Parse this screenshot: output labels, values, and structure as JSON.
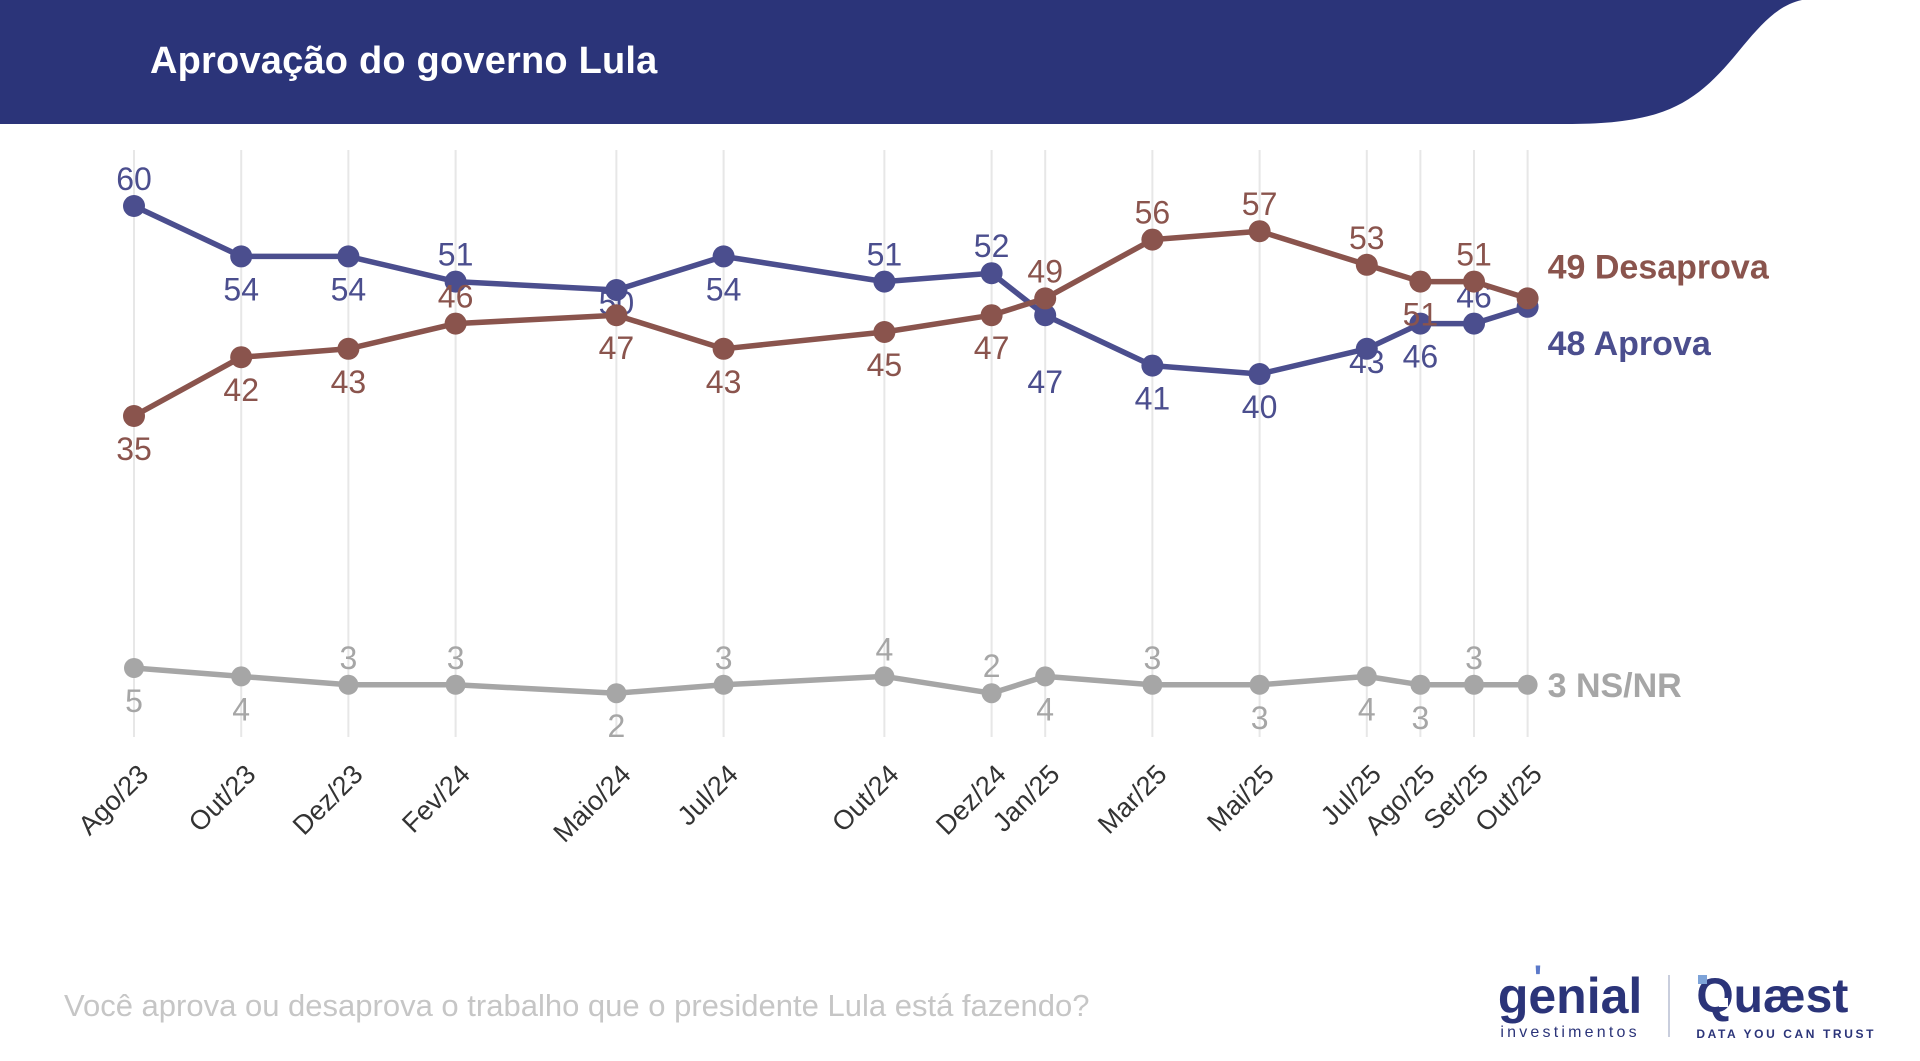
{
  "header": {
    "title": "Aprovação do governo Lula",
    "bg_color": "#2b3479",
    "text_color": "#ffffff"
  },
  "chart_data": {
    "type": "line",
    "title": "Aprovação do governo Lula",
    "categories": [
      "Ago/23",
      "Out/23",
      "Dez/23",
      "Fev/24",
      "Maio/24",
      "Jul/24",
      "Out/24",
      "Dez/24",
      "Jan/25",
      "Mar/25",
      "Mai/25",
      "Jul/25",
      "Ago/25",
      "Set/25",
      "Out/25"
    ],
    "month_offsets": [
      0,
      2,
      4,
      6,
      9,
      11,
      14,
      16,
      17,
      19,
      21,
      23,
      24,
      25,
      26
    ],
    "series": [
      {
        "id": "aprova",
        "name": "Aprova",
        "color": "#4b4e8e",
        "values": [
          60,
          54,
          54,
          51,
          50,
          54,
          51,
          52,
          47,
          41,
          40,
          43,
          46,
          46,
          48
        ],
        "label_pos": [
          "above",
          "below",
          "below",
          "above",
          "on",
          "below",
          "above",
          "above",
          "far-below",
          "below",
          "below",
          "on",
          "below",
          "above",
          "end"
        ],
        "end_label": "48 Aprova",
        "end_label_dy": 48
      },
      {
        "id": "desaprova",
        "name": "Desaprova",
        "color": "#8a544d",
        "values": [
          35,
          42,
          43,
          46,
          47,
          43,
          45,
          47,
          49,
          56,
          57,
          53,
          51,
          51,
          49
        ],
        "label_pos": [
          "below",
          "below",
          "below",
          "above",
          "below",
          "below",
          "below",
          "below",
          "above",
          "above",
          "above",
          "above",
          "below",
          "above",
          "end"
        ],
        "end_label": "49 Desaprova",
        "end_label_dy": -20
      },
      {
        "id": "nsnr",
        "name": "NS/NR",
        "color": "#a6a6a6",
        "values": [
          5,
          4,
          3,
          3,
          2,
          3,
          4,
          2,
          4,
          3,
          3,
          4,
          3,
          3,
          3
        ],
        "label_pos": [
          "below",
          "below",
          "above",
          "above",
          "below",
          "above",
          "above",
          "above",
          "below",
          "above",
          "below",
          "below",
          "below",
          "above",
          "end"
        ],
        "end_label": "3 NS/NR",
        "end_label_dy": 12
      }
    ],
    "grid": true,
    "grid_color": "#e7e7e7",
    "legend_position": "right-end",
    "x_axis_rotation": -45,
    "ylim": [
      0,
      65
    ]
  },
  "footer": {
    "question": "Você aprova ou desaprova o trabalho que o presidente Lula está fazendo?"
  },
  "branding": {
    "navy": "#2b3479",
    "genial": {
      "name": "genial",
      "subtitle": "investimentos"
    },
    "quaest": {
      "name": "Quæst",
      "tagline": "DATA YOU CAN TRUST"
    }
  }
}
